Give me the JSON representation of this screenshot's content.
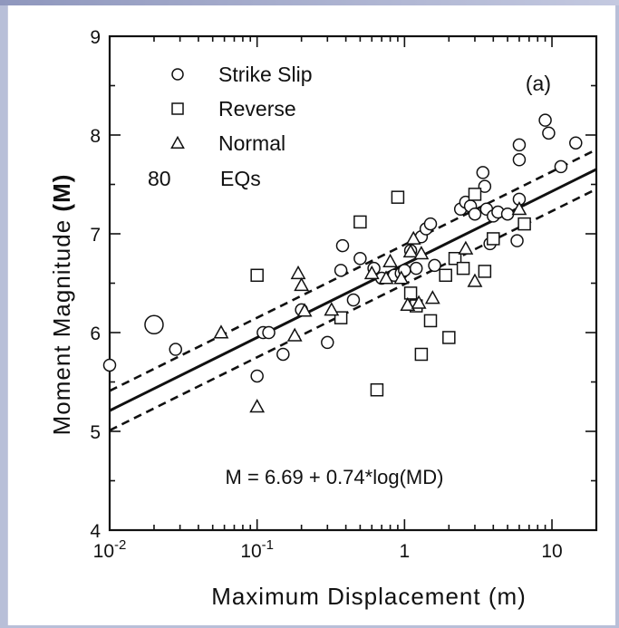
{
  "chart_data": {
    "type": "scatter",
    "title": "",
    "panel_label": "(a)",
    "xlabel": "Maximum Displacement (m)",
    "ylabel_main": "Moment Magnitude",
    "ylabel_symbol": "(M)",
    "xscale": "log",
    "xlim": [
      0.01,
      20
    ],
    "ylim": [
      4,
      9
    ],
    "x_ticks": [
      {
        "value": 0.01,
        "base": "10",
        "exp": "-2"
      },
      {
        "value": 0.1,
        "base": "10",
        "exp": "-1"
      },
      {
        "value": 1,
        "base": "1",
        "exp": ""
      },
      {
        "value": 10,
        "base": "10",
        "exp": ""
      }
    ],
    "y_ticks": [
      4,
      5,
      6,
      7,
      8,
      9
    ],
    "grid": false,
    "legend_position": "top-left",
    "legend": [
      {
        "marker": "circle",
        "label": "Strike Slip"
      },
      {
        "marker": "square",
        "label": "Reverse"
      },
      {
        "marker": "triangle",
        "label": "Normal"
      }
    ],
    "count_value": "80",
    "count_label": "EQs",
    "equation": "M = 6.69 + 0.74*log(MD)",
    "regression": {
      "intercept": 6.69,
      "slope": 0.74,
      "band": 0.2
    },
    "series": [
      {
        "name": "Strike Slip",
        "marker": "circle",
        "points": [
          [
            0.01,
            5.67
          ],
          [
            0.02,
            6.08
          ],
          [
            0.028,
            5.83
          ],
          [
            0.1,
            5.56
          ],
          [
            0.11,
            6.0
          ],
          [
            0.12,
            6.0
          ],
          [
            0.15,
            5.78
          ],
          [
            0.2,
            6.23
          ],
          [
            0.3,
            5.9
          ],
          [
            0.37,
            6.63
          ],
          [
            0.38,
            6.88
          ],
          [
            0.45,
            6.33
          ],
          [
            0.5,
            6.75
          ],
          [
            0.62,
            6.65
          ],
          [
            0.7,
            6.55
          ],
          [
            0.85,
            6.58
          ],
          [
            0.95,
            6.6
          ],
          [
            1.0,
            6.63
          ],
          [
            1.1,
            6.83
          ],
          [
            1.2,
            6.65
          ],
          [
            1.3,
            6.97
          ],
          [
            1.4,
            7.05
          ],
          [
            1.5,
            7.1
          ],
          [
            1.6,
            6.68
          ],
          [
            2.4,
            7.25
          ],
          [
            2.6,
            7.32
          ],
          [
            2.8,
            7.28
          ],
          [
            3.0,
            7.2
          ],
          [
            3.4,
            7.62
          ],
          [
            3.5,
            7.48
          ],
          [
            3.6,
            7.25
          ],
          [
            3.8,
            6.9
          ],
          [
            4.0,
            7.18
          ],
          [
            4.3,
            7.22
          ],
          [
            5.0,
            7.2
          ],
          [
            5.8,
            6.93
          ],
          [
            6.0,
            7.35
          ],
          [
            6.0,
            7.75
          ],
          [
            6.0,
            7.9
          ],
          [
            9.0,
            8.15
          ],
          [
            9.5,
            8.02
          ],
          [
            11.5,
            7.68
          ],
          [
            14.5,
            7.92
          ]
        ]
      },
      {
        "name": "Reverse",
        "marker": "square",
        "points": [
          [
            0.1,
            6.58
          ],
          [
            0.37,
            6.15
          ],
          [
            0.5,
            7.12
          ],
          [
            0.65,
            5.42
          ],
          [
            0.9,
            7.37
          ],
          [
            1.1,
            6.4
          ],
          [
            1.2,
            6.27
          ],
          [
            1.3,
            5.78
          ],
          [
            1.5,
            6.12
          ],
          [
            1.9,
            6.58
          ],
          [
            2.0,
            5.95
          ],
          [
            2.2,
            6.75
          ],
          [
            2.5,
            6.65
          ],
          [
            3.0,
            7.4
          ],
          [
            3.5,
            6.62
          ],
          [
            4.0,
            6.95
          ],
          [
            6.5,
            7.1
          ]
        ]
      },
      {
        "name": "Normal",
        "marker": "triangle",
        "points": [
          [
            0.057,
            6.0
          ],
          [
            0.1,
            5.25
          ],
          [
            0.18,
            5.97
          ],
          [
            0.19,
            6.6
          ],
          [
            0.2,
            6.48
          ],
          [
            0.21,
            6.22
          ],
          [
            0.32,
            6.23
          ],
          [
            0.6,
            6.6
          ],
          [
            0.75,
            6.55
          ],
          [
            0.8,
            6.72
          ],
          [
            0.95,
            6.55
          ],
          [
            1.05,
            6.28
          ],
          [
            1.1,
            6.82
          ],
          [
            1.15,
            6.95
          ],
          [
            1.25,
            6.3
          ],
          [
            1.3,
            6.8
          ],
          [
            1.55,
            6.35
          ],
          [
            2.6,
            6.85
          ],
          [
            3.0,
            6.52
          ],
          [
            6.0,
            7.25
          ]
        ]
      }
    ]
  }
}
